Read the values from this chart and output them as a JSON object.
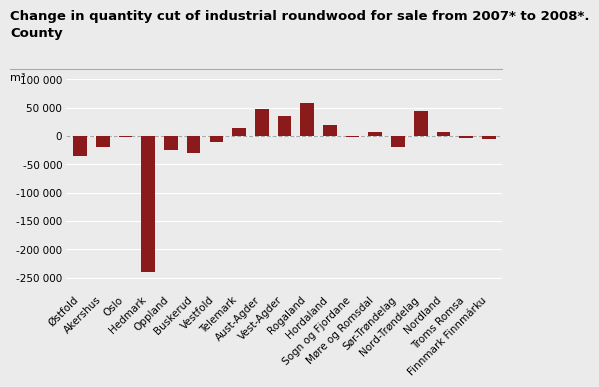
{
  "title_line1": "Change in quantity cut of industrial roundwood for sale from 2007* to 2008*.",
  "title_line2": "County",
  "unit_label": "m³",
  "categories": [
    "Østfold",
    "Akershus",
    "Oslo",
    "Hedmark",
    "Oppland",
    "Buskerud",
    "Vestfold",
    "Telemark",
    "Aust-Agder",
    "Vest-Agder",
    "Rogaland",
    "Hordaland",
    "Sogn og Fjordane",
    "Møre og Romsdal",
    "Sør-Trøndelag",
    "Nord-Trøndelag",
    "Nordland",
    "Troms Romsa",
    "Finnmark Finnmárku"
  ],
  "values": [
    -35000,
    -20000,
    -1000,
    -240000,
    -25000,
    -30000,
    -10000,
    15000,
    47000,
    35000,
    58000,
    20000,
    -1500,
    7000,
    -20000,
    44000,
    8000,
    -3000,
    -5000
  ],
  "bar_color": "#8b1a1a",
  "background_color": "#ebebeb",
  "plot_bg_color": "#ebebeb",
  "ylim": [
    -275000,
    100000
  ],
  "yticks": [
    -250000,
    -200000,
    -150000,
    -100000,
    -50000,
    0,
    50000,
    100000
  ],
  "grid_color": "#ffffff",
  "zero_line_color": "#aaaaaa",
  "title_fontsize": 9.5,
  "tick_fontsize": 7.5,
  "unit_fontsize": 8,
  "separator_color": "#aaaaaa"
}
